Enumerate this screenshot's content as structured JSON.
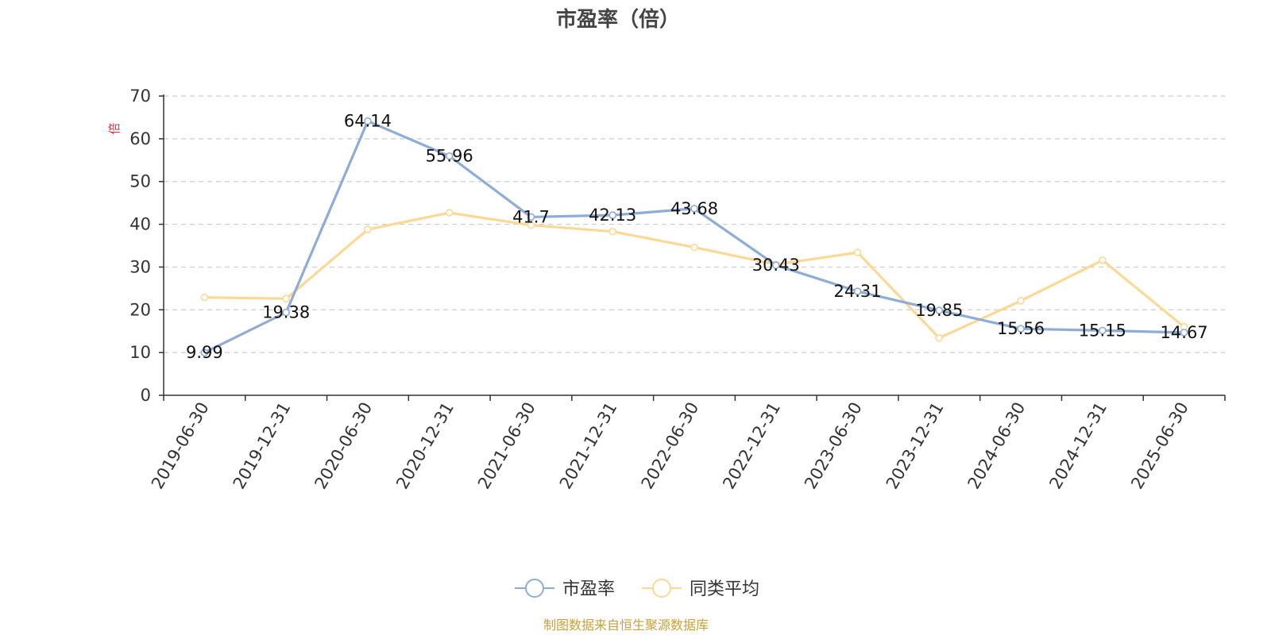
{
  "chart_data": {
    "type": "line",
    "title": "市盈率（倍）",
    "ylabel": "倍",
    "xlabel": "",
    "ylim": [
      0,
      70
    ],
    "yticks": [
      0,
      10,
      20,
      30,
      40,
      50,
      60,
      70
    ],
    "grid": true,
    "legend_position": "bottom",
    "categories": [
      "2019-06-30",
      "2019-12-31",
      "2020-06-30",
      "2020-12-31",
      "2021-06-30",
      "2021-12-31",
      "2022-06-30",
      "2022-12-31",
      "2023-06-30",
      "2023-12-31",
      "2024-06-30",
      "2024-12-31",
      "2025-06-30"
    ],
    "series": [
      {
        "name": "市盈率",
        "color": "#8eacd8",
        "show_labels": true,
        "values": [
          9.99,
          19.38,
          64.14,
          55.96,
          41.7,
          42.13,
          43.68,
          30.43,
          24.31,
          19.85,
          15.56,
          15.15,
          14.67
        ],
        "labels": [
          "9.99",
          "19.38",
          "64.14",
          "55.96",
          "41.7",
          "42.13",
          "43.68",
          "30.43",
          "24.31",
          "19.85",
          "15.56",
          "15.15",
          "14.67"
        ]
      },
      {
        "name": "同类平均",
        "color": "#fbd995",
        "show_labels": false,
        "values": [
          22.9,
          22.6,
          38.8,
          42.7,
          39.8,
          38.3,
          34.6,
          30.6,
          33.4,
          13.4,
          22.1,
          31.6,
          16.0
        ]
      }
    ]
  },
  "source_note": "制图数据来自恒生聚源数据库",
  "colors": {
    "unit_label": "#e0303a",
    "source_note": "#c9a03c",
    "axis": "#333333",
    "grid": "#cccccc"
  }
}
